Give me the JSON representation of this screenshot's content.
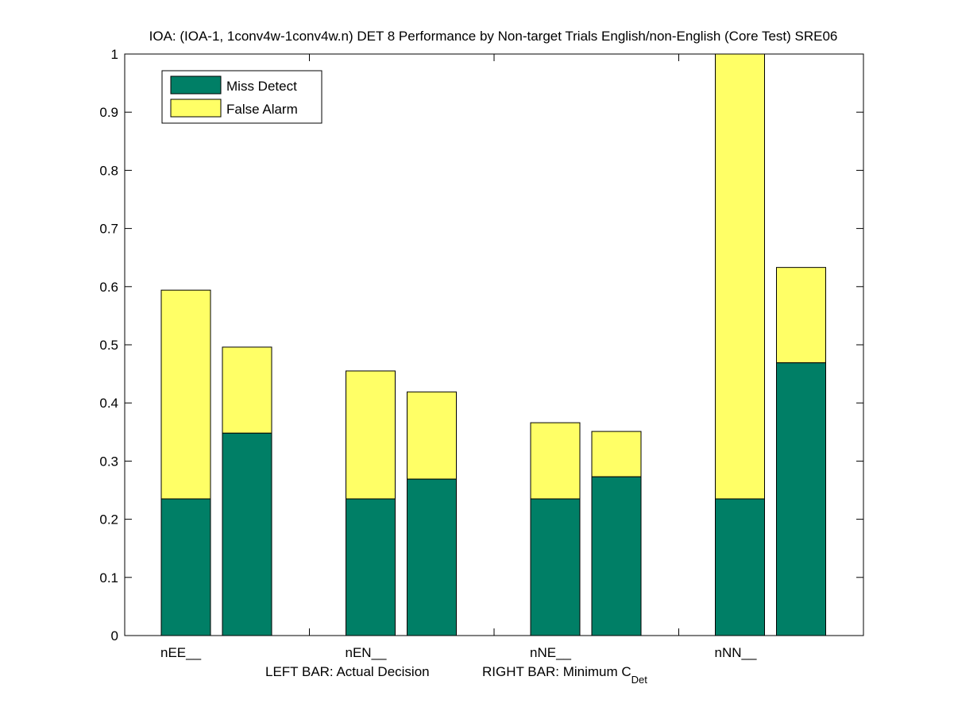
{
  "chart_data": {
    "type": "bar",
    "stacked": true,
    "title": "IOA: (IOA-1, 1conv4w-1conv4w.n) DET 8 Performance by Non-target Trials English/non-English (Core Test) SRE06",
    "xlabel_left": "LEFT BAR: Actual Decision",
    "xlabel_right_main": "RIGHT BAR: Minimum C",
    "xlabel_right_sub": "Det",
    "ylabel": "",
    "ylim": [
      0,
      1
    ],
    "yticks": [
      0,
      0.1,
      0.2,
      0.3,
      0.4,
      0.5,
      0.6,
      0.7,
      0.8,
      0.9,
      1
    ],
    "ytick_labels": [
      "0",
      "0.1",
      "0.2",
      "0.3",
      "0.4",
      "0.5",
      "0.6",
      "0.7",
      "0.8",
      "0.9",
      "1"
    ],
    "categories": [
      "nEE__",
      "nEN__",
      "nNE__",
      "nNN__"
    ],
    "bar_roles": [
      "Actual Decision",
      "Minimum CDet"
    ],
    "grid": false,
    "legend": {
      "position": "top-left",
      "entries": [
        {
          "label": "Miss Detect",
          "color": "#007f66"
        },
        {
          "label": "False Alarm",
          "color": "#ffff66"
        }
      ]
    },
    "series": [
      {
        "name": "Miss Detect",
        "color": "#007f66",
        "actual_decision": [
          0.235,
          0.235,
          0.235,
          0.235
        ],
        "minimum_cdet": [
          0.348,
          0.269,
          0.273,
          0.469
        ]
      },
      {
        "name": "False Alarm",
        "color": "#ffff66",
        "actual_decision": [
          0.359,
          0.22,
          0.131,
          0.765
        ],
        "minimum_cdet": [
          0.148,
          0.15,
          0.078,
          0.164
        ]
      }
    ],
    "totals": {
      "actual_decision": [
        0.594,
        0.455,
        0.366,
        1.0
      ],
      "minimum_cdet": [
        0.496,
        0.419,
        0.351,
        0.633
      ]
    },
    "note": "nNN__ actual-decision bar is clipped at the top of the axis (1.0)"
  }
}
